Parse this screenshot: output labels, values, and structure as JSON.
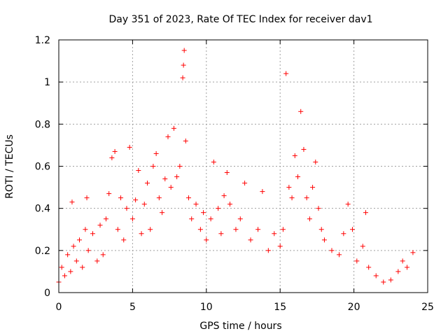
{
  "chart_data": {
    "type": "scatter",
    "title": "Day 351 of 2023, Rate Of TEC Index for receiver dav1",
    "xlabel": "GPS time / hours",
    "ylabel": "ROTI / TECUs",
    "xlim": [
      0,
      25
    ],
    "ylim": [
      0,
      1.2
    ],
    "xticks": [
      0,
      5,
      10,
      15,
      20,
      25
    ],
    "yticks": [
      0,
      0.2,
      0.4,
      0.6,
      0.8,
      1,
      1.2
    ],
    "xtick_labels": [
      "0",
      "5",
      "10",
      "15",
      "20",
      "25"
    ],
    "ytick_labels": [
      "0",
      "0.2",
      "0.4",
      "0.6",
      "0.8",
      "1",
      "1.2"
    ],
    "grid": true,
    "marker": "+",
    "color": "#ff0000",
    "series": [
      {
        "points": [
          [
            0.0,
            0.05
          ],
          [
            0.2,
            0.12
          ],
          [
            0.4,
            0.08
          ],
          [
            0.6,
            0.18
          ],
          [
            0.8,
            0.1
          ],
          [
            0.9,
            0.43
          ],
          [
            1.0,
            0.22
          ],
          [
            1.2,
            0.15
          ],
          [
            1.4,
            0.25
          ],
          [
            1.6,
            0.12
          ],
          [
            1.8,
            0.3
          ],
          [
            1.9,
            0.45
          ],
          [
            2.0,
            0.2
          ],
          [
            2.3,
            0.28
          ],
          [
            2.6,
            0.15
          ],
          [
            2.8,
            0.32
          ],
          [
            3.0,
            0.18
          ],
          [
            3.2,
            0.35
          ],
          [
            3.4,
            0.47
          ],
          [
            3.6,
            0.64
          ],
          [
            3.8,
            0.67
          ],
          [
            4.0,
            0.3
          ],
          [
            4.2,
            0.45
          ],
          [
            4.4,
            0.25
          ],
          [
            4.6,
            0.4
          ],
          [
            4.8,
            0.69
          ],
          [
            5.0,
            0.35
          ],
          [
            5.2,
            0.44
          ],
          [
            5.4,
            0.58
          ],
          [
            5.6,
            0.28
          ],
          [
            5.8,
            0.42
          ],
          [
            6.0,
            0.52
          ],
          [
            6.2,
            0.3
          ],
          [
            6.4,
            0.6
          ],
          [
            6.6,
            0.66
          ],
          [
            6.8,
            0.45
          ],
          [
            7.0,
            0.38
          ],
          [
            7.2,
            0.54
          ],
          [
            7.4,
            0.74
          ],
          [
            7.6,
            0.5
          ],
          [
            7.8,
            0.78
          ],
          [
            8.0,
            0.55
          ],
          [
            8.2,
            0.6
          ],
          [
            8.4,
            1.02
          ],
          [
            8.45,
            1.08
          ],
          [
            8.5,
            1.15
          ],
          [
            8.6,
            0.72
          ],
          [
            8.8,
            0.45
          ],
          [
            9.0,
            0.35
          ],
          [
            9.3,
            0.42
          ],
          [
            9.6,
            0.3
          ],
          [
            9.8,
            0.38
          ],
          [
            10.0,
            0.25
          ],
          [
            10.3,
            0.35
          ],
          [
            10.5,
            0.62
          ],
          [
            10.8,
            0.4
          ],
          [
            11.0,
            0.28
          ],
          [
            11.2,
            0.46
          ],
          [
            11.4,
            0.57
          ],
          [
            11.6,
            0.42
          ],
          [
            12.0,
            0.3
          ],
          [
            12.3,
            0.35
          ],
          [
            12.6,
            0.52
          ],
          [
            13.0,
            0.25
          ],
          [
            13.5,
            0.3
          ],
          [
            13.8,
            0.48
          ],
          [
            14.2,
            0.2
          ],
          [
            14.6,
            0.28
          ],
          [
            15.0,
            0.22
          ],
          [
            15.2,
            0.3
          ],
          [
            15.4,
            1.04
          ],
          [
            15.6,
            0.5
          ],
          [
            15.8,
            0.45
          ],
          [
            16.0,
            0.65
          ],
          [
            16.2,
            0.55
          ],
          [
            16.4,
            0.86
          ],
          [
            16.6,
            0.68
          ],
          [
            16.8,
            0.45
          ],
          [
            17.0,
            0.35
          ],
          [
            17.2,
            0.5
          ],
          [
            17.4,
            0.62
          ],
          [
            17.6,
            0.4
          ],
          [
            17.8,
            0.3
          ],
          [
            18.0,
            0.25
          ],
          [
            18.5,
            0.2
          ],
          [
            19.0,
            0.18
          ],
          [
            19.3,
            0.28
          ],
          [
            19.6,
            0.42
          ],
          [
            19.9,
            0.3
          ],
          [
            20.2,
            0.15
          ],
          [
            20.6,
            0.22
          ],
          [
            20.8,
            0.38
          ],
          [
            21.0,
            0.12
          ],
          [
            21.5,
            0.08
          ],
          [
            22.0,
            0.05
          ],
          [
            22.5,
            0.06
          ],
          [
            23.0,
            0.1
          ],
          [
            23.3,
            0.15
          ],
          [
            23.6,
            0.12
          ],
          [
            24.0,
            0.19
          ]
        ]
      }
    ]
  }
}
